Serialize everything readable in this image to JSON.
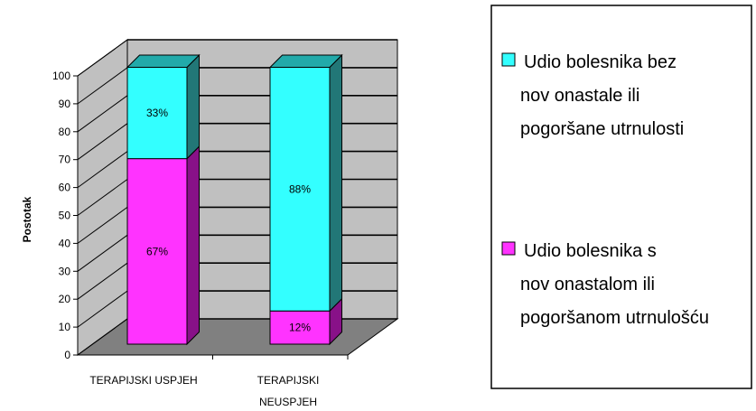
{
  "chart_data": {
    "type": "bar",
    "stacked": true,
    "three_d": true,
    "ylabel": "Postotak",
    "ylim": [
      0,
      100
    ],
    "yticks": [
      0,
      10,
      20,
      30,
      40,
      50,
      60,
      70,
      80,
      90,
      100
    ],
    "grid": true,
    "legend_position": "right",
    "categories": [
      [
        "TERAPIJSKI  USPJEH"
      ],
      [
        "TERAPIJSKI",
        "NEUSPJEH"
      ]
    ],
    "series": [
      {
        "name": "Udio bolesnika s novonastalom ili pogoršanom utrnulošću",
        "legend_lines": [
          "Udio bolesnika s",
          "nov onastalom ili",
          "pogoršanom utrnulošću"
        ],
        "color": "#ff33ff",
        "side_color": "#881188",
        "values": [
          67,
          12
        ],
        "labels": [
          "67%",
          "12%"
        ]
      },
      {
        "name": "Udio bolesnika bez novonastale ili pogoršane utrnulosti",
        "legend_lines": [
          "Udio bolesnika bez",
          "nov onastale ili",
          "pogoršane utrnulosti"
        ],
        "color": "#33ffff",
        "side_color": "#227777",
        "top_color": "#22aaaa",
        "values": [
          33,
          88
        ],
        "labels": [
          "33%",
          "88%"
        ]
      }
    ],
    "legend_order": [
      1,
      0
    ],
    "wall_color": "#c0c0c0",
    "floor_color": "#808080"
  }
}
